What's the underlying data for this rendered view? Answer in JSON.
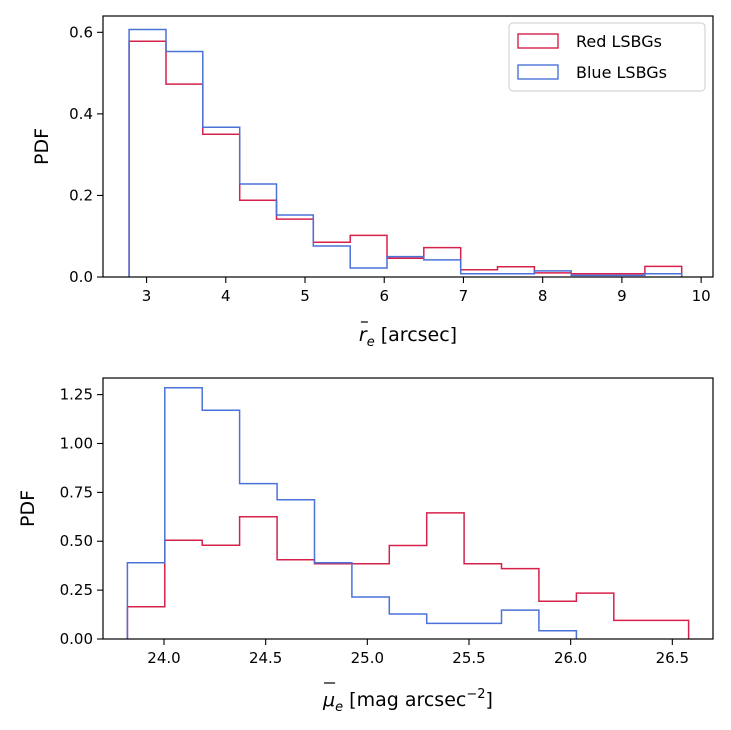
{
  "chart_data": [
    {
      "type": "histogram",
      "ylabel": "PDF",
      "xlabel": {
        "sym": "r",
        "sub": "e",
        "unit": " [arcsec]"
      },
      "xlim": [
        2.45,
        10.15
      ],
      "ylim": [
        0,
        0.64
      ],
      "xticks": [
        3,
        4,
        5,
        6,
        7,
        8,
        9,
        10
      ],
      "yticks": [
        0.0,
        0.2,
        0.4,
        0.6
      ],
      "ytick_decimals": 1,
      "legend": {
        "position": "upper-right",
        "entries": [
          "Red LSBGs",
          "Blue LSBGs"
        ]
      },
      "series": [
        {
          "name": "Red LSBGs",
          "color": "#d6214b",
          "edges": [
            2.78,
            3.245,
            3.71,
            4.175,
            4.64,
            5.105,
            5.57,
            6.035,
            6.5,
            6.965,
            7.43,
            7.895,
            8.36,
            8.825,
            9.29,
            9.755
          ],
          "values": [
            0.578,
            0.473,
            0.35,
            0.188,
            0.142,
            0.085,
            0.102,
            0.046,
            0.072,
            0.018,
            0.025,
            0.01,
            0.008,
            0.008,
            0.026
          ]
        },
        {
          "name": "Blue LSBGs",
          "color": "#4a72d8",
          "edges": [
            2.78,
            3.245,
            3.71,
            4.175,
            4.64,
            5.105,
            5.57,
            6.035,
            6.5,
            6.965,
            7.43,
            7.895,
            8.36,
            8.825,
            9.29,
            9.755
          ],
          "values": [
            0.607,
            0.553,
            0.367,
            0.228,
            0.152,
            0.076,
            0.022,
            0.05,
            0.042,
            0.008,
            0.008,
            0.015,
            0.004,
            0.004,
            0.008
          ]
        }
      ]
    },
    {
      "type": "histogram",
      "ylabel": "PDF",
      "xlabel": {
        "sym": "μ",
        "sub": "e",
        "unit": " [mag arcsec",
        "sup": "−2",
        "tail": "]"
      },
      "xlim": [
        23.7,
        26.7
      ],
      "ylim": [
        0,
        1.335
      ],
      "xticks": [
        24.0,
        24.5,
        25.0,
        25.5,
        26.0,
        26.5
      ],
      "xtick_decimals": 1,
      "yticks": [
        0.0,
        0.25,
        0.5,
        0.75,
        1.0,
        1.25
      ],
      "ytick_decimals": 2,
      "series": [
        {
          "name": "Red LSBGs",
          "color": "#d6214b",
          "edges": [
            23.82,
            24.004,
            24.188,
            24.372,
            24.556,
            24.74,
            24.924,
            25.108,
            25.292,
            25.476,
            25.66,
            25.844,
            26.028,
            26.212,
            26.396,
            26.58
          ],
          "values": [
            0.165,
            0.505,
            0.48,
            0.625,
            0.405,
            0.385,
            0.385,
            0.478,
            0.645,
            0.385,
            0.36,
            0.193,
            0.235,
            0.095,
            0.095
          ]
        },
        {
          "name": "Blue LSBGs",
          "color": "#4a72d8",
          "edges": [
            23.82,
            24.004,
            24.188,
            24.372,
            24.556,
            24.74,
            24.924,
            25.108,
            25.292,
            25.476,
            25.66,
            25.844,
            26.028
          ],
          "values": [
            0.39,
            1.285,
            1.17,
            0.795,
            0.712,
            0.39,
            0.215,
            0.128,
            0.08,
            0.08,
            0.148,
            0.042
          ]
        }
      ]
    }
  ]
}
